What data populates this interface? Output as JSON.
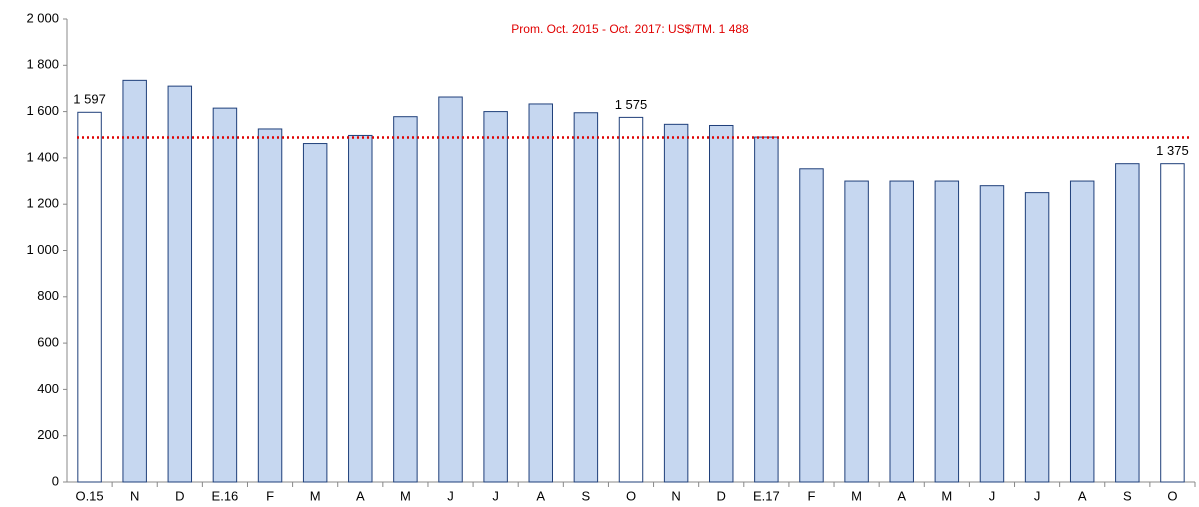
{
  "chart_data": {
    "type": "bar",
    "subtitle": "Prom. Oct. 2015 - Oct. 2017: US$/TM. 1 488",
    "categories": [
      "O.15",
      "N",
      "D",
      "E.16",
      "F",
      "M",
      "A",
      "M",
      "J",
      "J",
      "A",
      "S",
      "O",
      "N",
      "D",
      "E.17",
      "F",
      "M",
      "A",
      "M",
      "J",
      "J",
      "A",
      "S",
      "O"
    ],
    "values": [
      1597,
      1735,
      1710,
      1615,
      1525,
      1462,
      1497,
      1578,
      1663,
      1600,
      1633,
      1595,
      1575,
      1545,
      1540,
      1490,
      1353,
      1300,
      1300,
      1300,
      1280,
      1250,
      1300,
      1375,
      1375
    ],
    "value_labels": [
      "1 597",
      null,
      null,
      null,
      null,
      null,
      null,
      null,
      null,
      null,
      null,
      null,
      "1 575",
      null,
      null,
      null,
      null,
      null,
      null,
      null,
      null,
      null,
      null,
      null,
      "1 375"
    ],
    "colors": [
      "#ffffff",
      "#c6d7f0",
      "#c6d7f0",
      "#c6d7f0",
      "#c6d7f0",
      "#c6d7f0",
      "#c6d7f0",
      "#c6d7f0",
      "#c6d7f0",
      "#c6d7f0",
      "#c6d7f0",
      "#c6d7f0",
      "#ffffff",
      "#c6d7f0",
      "#c6d7f0",
      "#c6d7f0",
      "#c6d7f0",
      "#c6d7f0",
      "#c6d7f0",
      "#c6d7f0",
      "#c6d7f0",
      "#c6d7f0",
      "#c6d7f0",
      "#c6d7f0",
      "#ffffff"
    ],
    "edge_color": "#1f3f7a",
    "reference_line": {
      "value": 1488,
      "color": "#e00000"
    },
    "ylim": [
      0,
      2000
    ],
    "yticks": [
      0,
      200,
      400,
      600,
      800,
      {
        "value": 1000,
        "label": "1 000"
      },
      {
        "value": 1200,
        "label": "1 200"
      },
      {
        "value": 1400,
        "label": "1 400"
      },
      {
        "value": 1600,
        "label": "1 600"
      },
      {
        "value": 1800,
        "label": "1 800"
      },
      {
        "value": 2000,
        "label": "2 000"
      }
    ],
    "grid": false
  }
}
